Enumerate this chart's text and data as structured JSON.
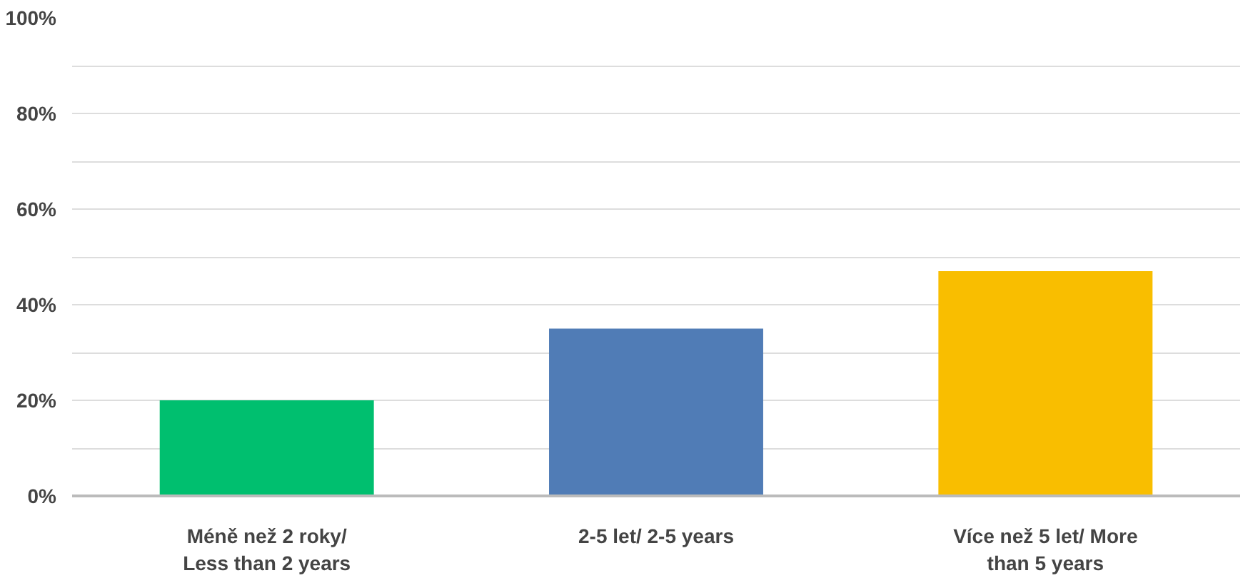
{
  "chart_data": {
    "type": "bar",
    "categories": [
      "Méně než 2 roky/\nLess than 2 years",
      "2-5 let/ 2-5 years",
      "Více než 5 let/ More\nthan 5 years"
    ],
    "values": [
      20,
      35,
      47
    ],
    "colors": [
      "#00bf6f",
      "#507cb6",
      "#f9be00"
    ],
    "ylim": [
      0,
      100
    ],
    "yticks": [
      {
        "value": 0,
        "label": "0%"
      },
      {
        "value": 10,
        "label": null
      },
      {
        "value": 20,
        "label": "20%"
      },
      {
        "value": 30,
        "label": null
      },
      {
        "value": 40,
        "label": "40%"
      },
      {
        "value": 50,
        "label": null
      },
      {
        "value": 60,
        "label": "60%"
      },
      {
        "value": 70,
        "label": null
      },
      {
        "value": 80,
        "label": "80%"
      },
      {
        "value": 90,
        "label": null
      },
      {
        "value": 100,
        "label": "100%"
      }
    ],
    "grid": "y"
  }
}
